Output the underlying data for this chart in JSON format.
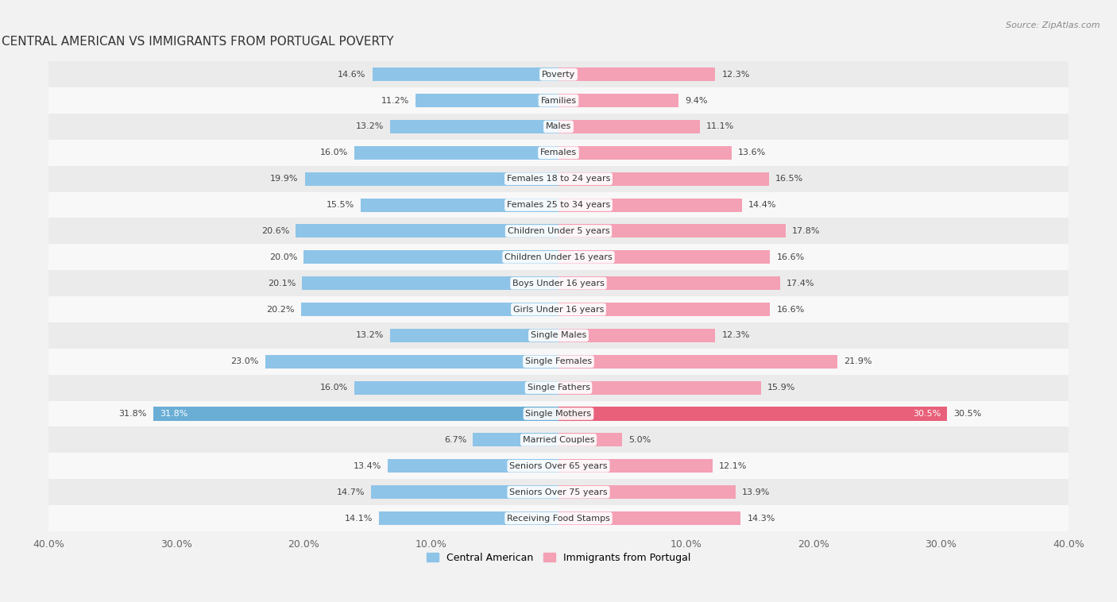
{
  "title": "CENTRAL AMERICAN VS IMMIGRANTS FROM PORTUGAL POVERTY",
  "source": "Source: ZipAtlas.com",
  "categories": [
    "Poverty",
    "Families",
    "Males",
    "Females",
    "Females 18 to 24 years",
    "Females 25 to 34 years",
    "Children Under 5 years",
    "Children Under 16 years",
    "Boys Under 16 years",
    "Girls Under 16 years",
    "Single Males",
    "Single Females",
    "Single Fathers",
    "Single Mothers",
    "Married Couples",
    "Seniors Over 65 years",
    "Seniors Over 75 years",
    "Receiving Food Stamps"
  ],
  "central_american": [
    14.6,
    11.2,
    13.2,
    16.0,
    19.9,
    15.5,
    20.6,
    20.0,
    20.1,
    20.2,
    13.2,
    23.0,
    16.0,
    31.8,
    6.7,
    13.4,
    14.7,
    14.1
  ],
  "immigrants_portugal": [
    12.3,
    9.4,
    11.1,
    13.6,
    16.5,
    14.4,
    17.8,
    16.6,
    17.4,
    16.6,
    12.3,
    21.9,
    15.9,
    30.5,
    5.0,
    12.1,
    13.9,
    14.3
  ],
  "color_central": "#8ec4e8",
  "color_portugal": "#f4a0b5",
  "color_single_mothers_ca": "#6aaed6",
  "color_single_mothers_pt": "#e8607a",
  "xlim": 40.0,
  "background_color": "#f2f2f2",
  "row_bg_odd": "#ebebeb",
  "row_bg_even": "#f8f8f8",
  "tick_labels": [
    "40.0%",
    "30.0%",
    "20.0%",
    "10.0%",
    "",
    "10.0%",
    "20.0%",
    "30.0%",
    "40.0%"
  ],
  "tick_positions": [
    -40,
    -30,
    -20,
    -10,
    0,
    10,
    20,
    30,
    40
  ]
}
